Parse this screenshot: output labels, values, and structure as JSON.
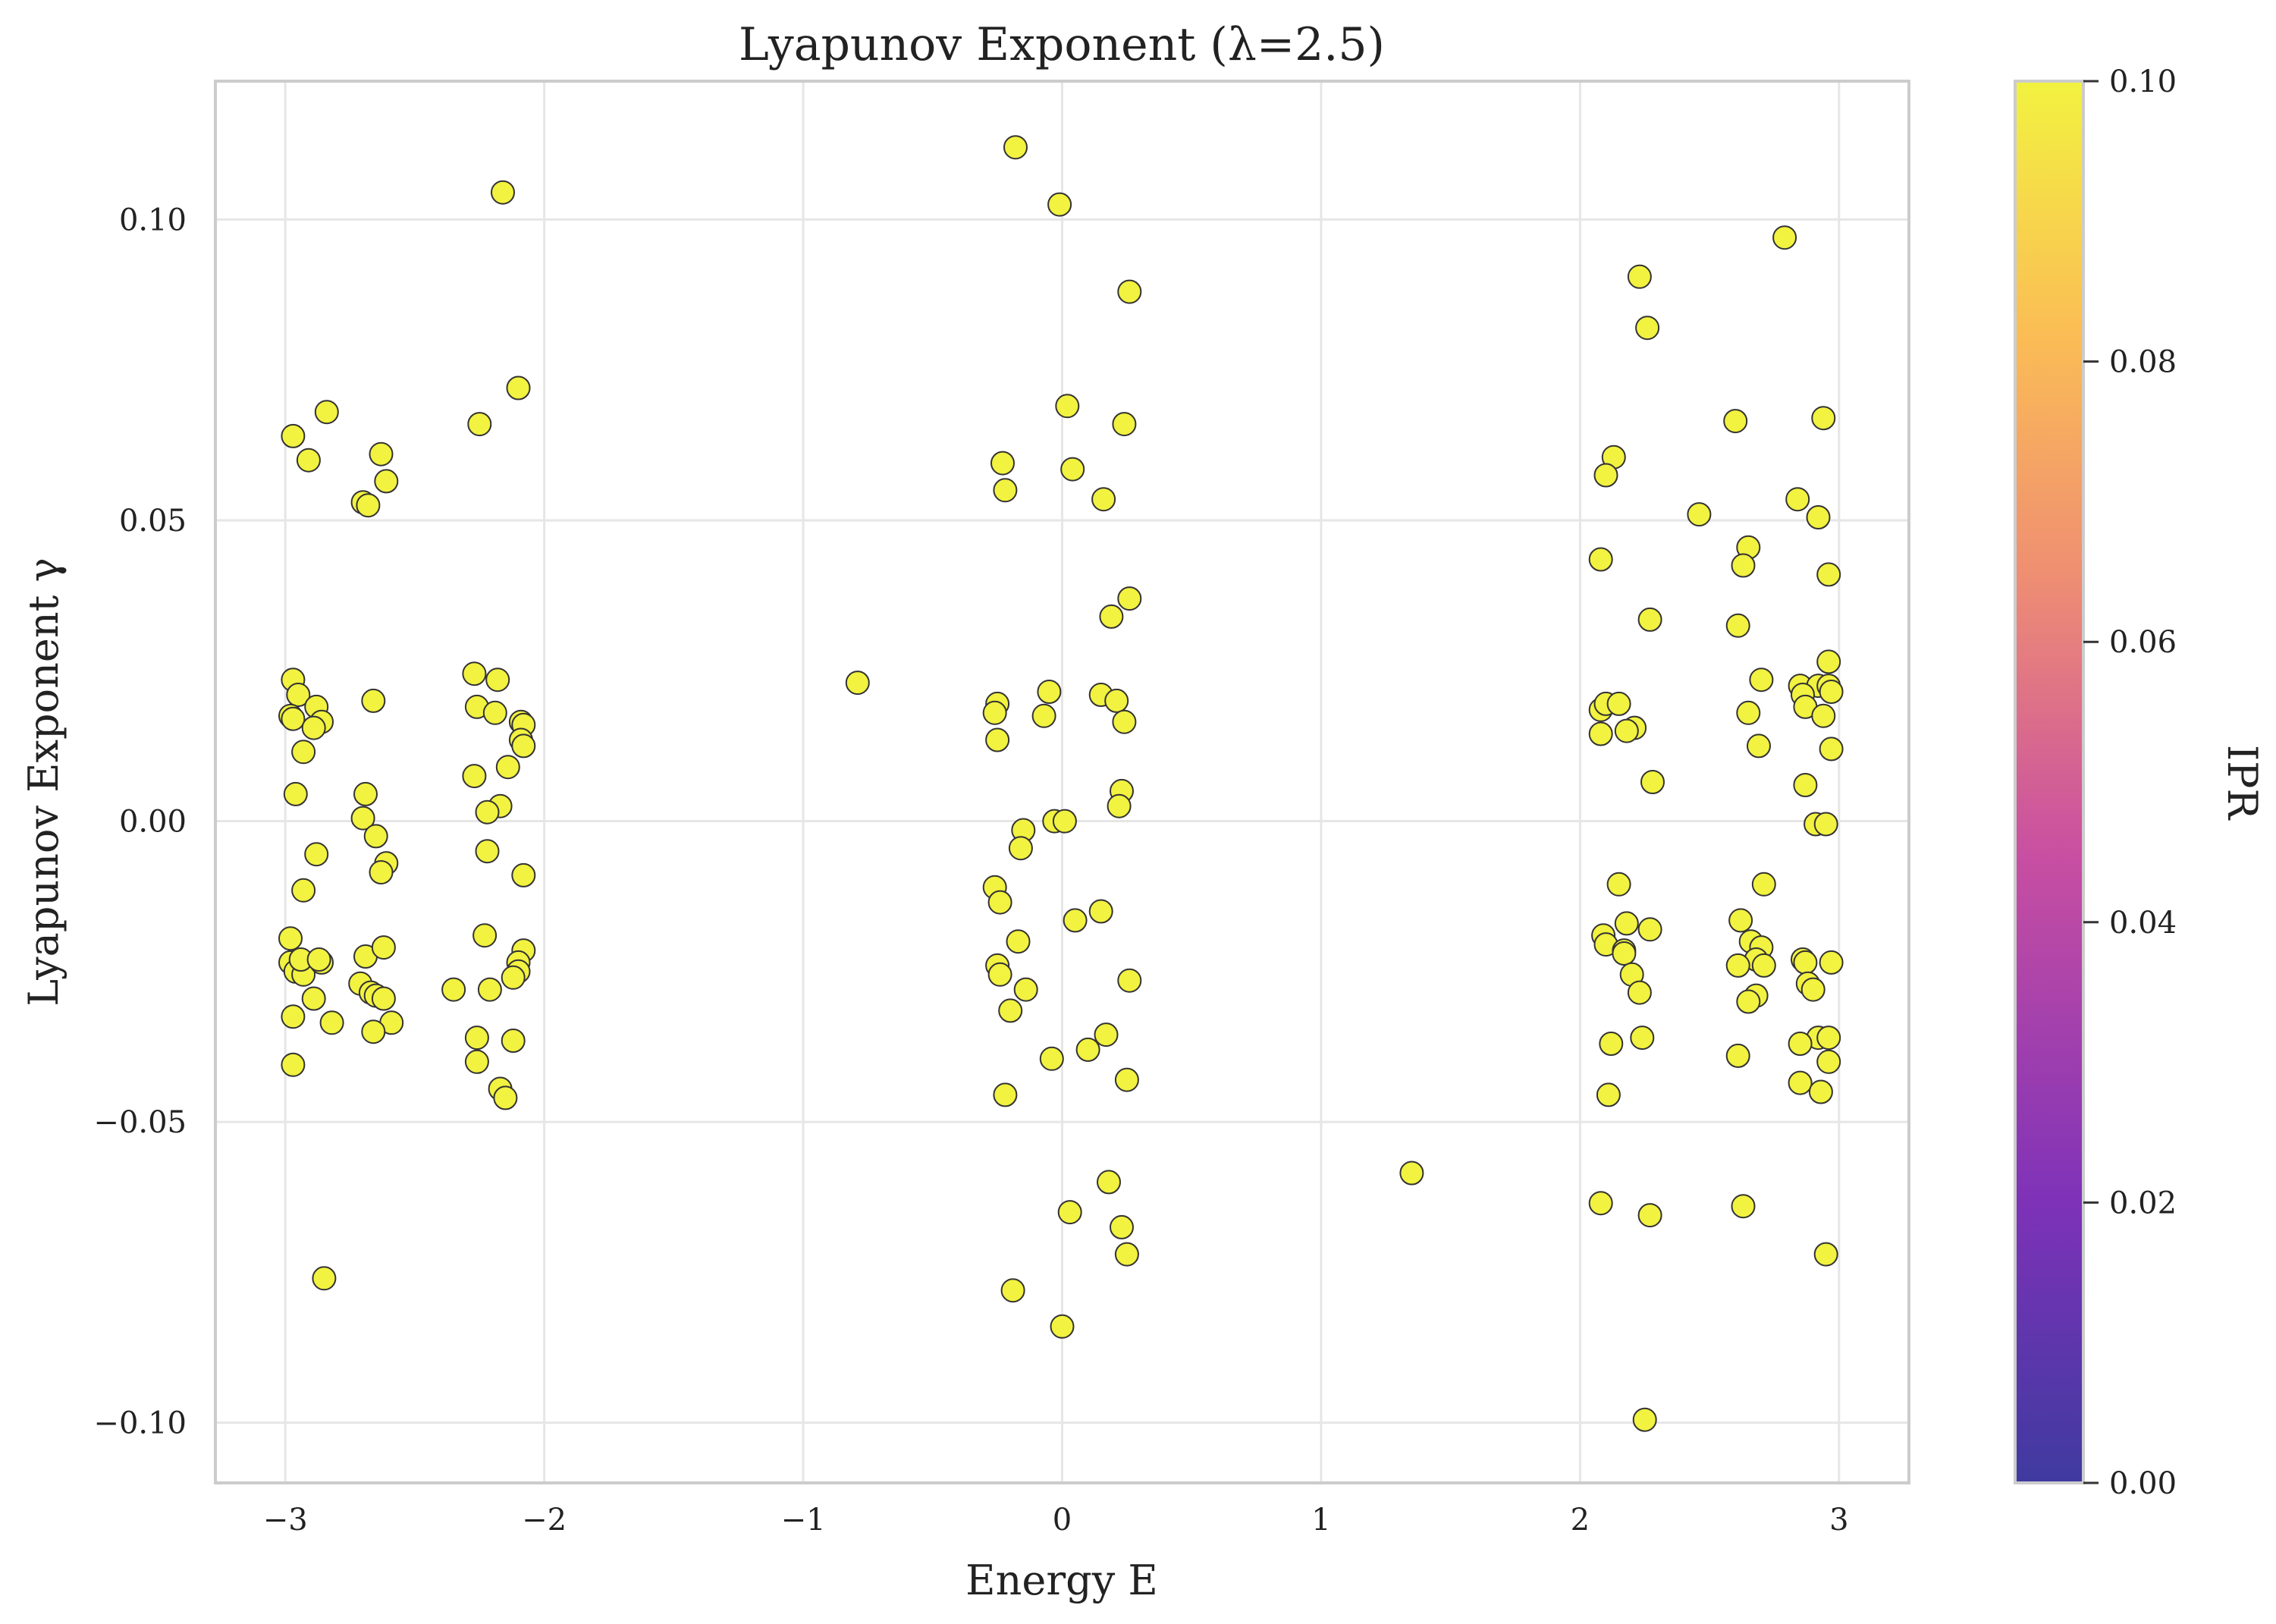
{
  "chart_data": {
    "type": "scatter",
    "title": "Lyapunov Exponent (λ=2.5)",
    "xlabel": "Energy E",
    "ylabel": "Lyapunov Exponent γ",
    "xlim": [
      -3.27,
      3.27
    ],
    "ylim": [
      -0.11,
      0.123
    ],
    "x_ticks": [
      -3,
      -2,
      -1,
      0,
      1,
      2,
      3
    ],
    "x_tick_labels": [
      "−3",
      "−2",
      "−1",
      "0",
      "1",
      "2",
      "3"
    ],
    "y_ticks": [
      -0.1,
      -0.05,
      0.0,
      0.05,
      0.1
    ],
    "y_tick_labels": [
      "−0.10",
      "−0.05",
      "0.00",
      "0.05",
      "0.10"
    ],
    "grid": true,
    "marker_color": "#f2f240",
    "marker_edge_color": "#333333",
    "colorbar": {
      "label": "IPR",
      "range": [
        0.0,
        0.1
      ],
      "ticks": [
        0.0,
        0.02,
        0.04,
        0.06,
        0.08,
        0.1
      ],
      "tick_labels": [
        "0.00",
        "0.02",
        "0.04",
        "0.06",
        "0.08",
        "0.10"
      ],
      "colormap": [
        "#3f3aa0",
        "#7e32b8",
        "#c94fa1",
        "#ef8f72",
        "#fbbd55",
        "#f2f240"
      ]
    },
    "points": [
      [
        -2.97,
        0.064
      ],
      [
        -2.91,
        0.06
      ],
      [
        -2.84,
        0.068
      ],
      [
        -2.7,
        0.053
      ],
      [
        -2.68,
        0.0525
      ],
      [
        -2.63,
        0.061
      ],
      [
        -2.61,
        0.0565
      ],
      [
        -2.97,
        0.0235
      ],
      [
        -2.95,
        0.021
      ],
      [
        -2.98,
        0.0175
      ],
      [
        -2.97,
        0.017
      ],
      [
        -2.88,
        0.019
      ],
      [
        -2.86,
        0.0165
      ],
      [
        -2.89,
        0.0155
      ],
      [
        -2.93,
        0.0115
      ],
      [
        -2.96,
        0.0045
      ],
      [
        -2.66,
        0.02
      ],
      [
        -2.69,
        0.0045
      ],
      [
        -2.7,
        0.0005
      ],
      [
        -2.65,
        -0.0025
      ],
      [
        -2.61,
        -0.007
      ],
      [
        -2.63,
        -0.0085
      ],
      [
        -2.88,
        -0.0055
      ],
      [
        -2.93,
        -0.0115
      ],
      [
        -2.98,
        -0.0195
      ],
      [
        -2.98,
        -0.0235
      ],
      [
        -2.96,
        -0.025
      ],
      [
        -2.93,
        -0.0255
      ],
      [
        -2.94,
        -0.023
      ],
      [
        -2.86,
        -0.0235
      ],
      [
        -2.87,
        -0.023
      ],
      [
        -2.89,
        -0.0295
      ],
      [
        -2.97,
        -0.0325
      ],
      [
        -2.82,
        -0.0335
      ],
      [
        -2.97,
        -0.0405
      ],
      [
        -2.85,
        -0.076
      ],
      [
        -2.69,
        -0.0225
      ],
      [
        -2.71,
        -0.027
      ],
      [
        -2.67,
        -0.0285
      ],
      [
        -2.65,
        -0.029
      ],
      [
        -2.62,
        -0.0295
      ],
      [
        -2.62,
        -0.021
      ],
      [
        -2.59,
        -0.0335
      ],
      [
        -2.66,
        -0.035
      ],
      [
        -2.16,
        0.1045
      ],
      [
        -2.1,
        0.072
      ],
      [
        -2.25,
        0.066
      ],
      [
        -2.27,
        0.0245
      ],
      [
        -2.18,
        0.0235
      ],
      [
        -2.26,
        0.019
      ],
      [
        -2.19,
        0.018
      ],
      [
        -2.09,
        0.0165
      ],
      [
        -2.08,
        0.016
      ],
      [
        -2.09,
        0.0135
      ],
      [
        -2.08,
        0.0125
      ],
      [
        -2.14,
        0.009
      ],
      [
        -2.27,
        0.0075
      ],
      [
        -2.17,
        0.0025
      ],
      [
        -2.22,
        0.0015
      ],
      [
        -2.22,
        -0.005
      ],
      [
        -2.08,
        -0.009
      ],
      [
        -2.23,
        -0.019
      ],
      [
        -2.08,
        -0.0215
      ],
      [
        -2.1,
        -0.0235
      ],
      [
        -2.1,
        -0.025
      ],
      [
        -2.12,
        -0.026
      ],
      [
        -2.21,
        -0.028
      ],
      [
        -2.35,
        -0.028
      ],
      [
        -2.26,
        -0.036
      ],
      [
        -2.12,
        -0.0365
      ],
      [
        -2.26,
        -0.04
      ],
      [
        -2.17,
        -0.0445
      ],
      [
        -2.15,
        -0.046
      ],
      [
        -0.79,
        0.023
      ],
      [
        -0.18,
        0.112
      ],
      [
        -0.01,
        0.1025
      ],
      [
        0.26,
        0.088
      ],
      [
        0.02,
        0.069
      ],
      [
        0.24,
        0.066
      ],
      [
        -0.23,
        0.0595
      ],
      [
        0.04,
        0.0585
      ],
      [
        -0.22,
        0.055
      ],
      [
        0.16,
        0.0535
      ],
      [
        0.26,
        0.037
      ],
      [
        0.19,
        0.034
      ],
      [
        -0.25,
        0.0195
      ],
      [
        -0.26,
        0.018
      ],
      [
        -0.05,
        0.0215
      ],
      [
        -0.07,
        0.0175
      ],
      [
        0.15,
        0.021
      ],
      [
        0.21,
        0.02
      ],
      [
        0.24,
        0.0165
      ],
      [
        -0.25,
        0.0135
      ],
      [
        0.23,
        0.005
      ],
      [
        0.22,
        0.0025
      ],
      [
        -0.03,
        0.0
      ],
      [
        0.01,
        -0.0
      ],
      [
        -0.15,
        -0.0015
      ],
      [
        -0.16,
        -0.0045
      ],
      [
        -0.26,
        -0.011
      ],
      [
        -0.24,
        -0.0135
      ],
      [
        0.15,
        -0.015
      ],
      [
        0.05,
        -0.0165
      ],
      [
        -0.17,
        -0.02
      ],
      [
        -0.25,
        -0.024
      ],
      [
        -0.24,
        -0.0255
      ],
      [
        0.26,
        -0.0265
      ],
      [
        -0.14,
        -0.028
      ],
      [
        -0.2,
        -0.0315
      ],
      [
        0.17,
        -0.0355
      ],
      [
        0.1,
        -0.038
      ],
      [
        -0.04,
        -0.0395
      ],
      [
        0.25,
        -0.043
      ],
      [
        -0.22,
        -0.0455
      ],
      [
        0.18,
        -0.06
      ],
      [
        0.03,
        -0.065
      ],
      [
        0.23,
        -0.0675
      ],
      [
        0.25,
        -0.072
      ],
      [
        -0.19,
        -0.078
      ],
      [
        0.0,
        -0.084
      ],
      [
        1.35,
        -0.0585
      ],
      [
        2.23,
        0.0905
      ],
      [
        2.79,
        0.097
      ],
      [
        2.26,
        0.082
      ],
      [
        2.94,
        0.067
      ],
      [
        2.6,
        0.0665
      ],
      [
        2.13,
        0.0605
      ],
      [
        2.1,
        0.0575
      ],
      [
        2.84,
        0.0535
      ],
      [
        2.46,
        0.051
      ],
      [
        2.92,
        0.0505
      ],
      [
        2.08,
        0.0435
      ],
      [
        2.65,
        0.0455
      ],
      [
        2.63,
        0.0425
      ],
      [
        2.96,
        0.041
      ],
      [
        2.27,
        0.0335
      ],
      [
        2.61,
        0.0325
      ],
      [
        2.96,
        0.0265
      ],
      [
        2.7,
        0.0235
      ],
      [
        2.85,
        0.0225
      ],
      [
        2.92,
        0.0225
      ],
      [
        2.96,
        0.0225
      ],
      [
        2.97,
        0.0215
      ],
      [
        2.86,
        0.021
      ],
      [
        2.08,
        0.0185
      ],
      [
        2.1,
        0.0195
      ],
      [
        2.15,
        0.0195
      ],
      [
        2.21,
        0.0155
      ],
      [
        2.18,
        0.015
      ],
      [
        2.08,
        0.0145
      ],
      [
        2.65,
        0.018
      ],
      [
        2.87,
        0.019
      ],
      [
        2.94,
        0.0175
      ],
      [
        2.69,
        0.0125
      ],
      [
        2.97,
        0.012
      ],
      [
        2.28,
        0.0065
      ],
      [
        2.87,
        0.006
      ],
      [
        2.91,
        -0.0005
      ],
      [
        2.95,
        -0.0005
      ],
      [
        2.15,
        -0.0105
      ],
      [
        2.71,
        -0.0105
      ],
      [
        2.62,
        -0.0165
      ],
      [
        2.18,
        -0.017
      ],
      [
        2.27,
        -0.018
      ],
      [
        2.09,
        -0.019
      ],
      [
        2.1,
        -0.0205
      ],
      [
        2.17,
        -0.0215
      ],
      [
        2.17,
        -0.022
      ],
      [
        2.66,
        -0.02
      ],
      [
        2.7,
        -0.021
      ],
      [
        2.68,
        -0.023
      ],
      [
        2.86,
        -0.023
      ],
      [
        2.87,
        -0.0235
      ],
      [
        2.97,
        -0.0235
      ],
      [
        2.71,
        -0.024
      ],
      [
        2.61,
        -0.024
      ],
      [
        2.2,
        -0.0255
      ],
      [
        2.88,
        -0.027
      ],
      [
        2.9,
        -0.028
      ],
      [
        2.23,
        -0.0285
      ],
      [
        2.68,
        -0.029
      ],
      [
        2.65,
        -0.03
      ],
      [
        2.24,
        -0.036
      ],
      [
        2.92,
        -0.036
      ],
      [
        2.96,
        -0.036
      ],
      [
        2.12,
        -0.037
      ],
      [
        2.85,
        -0.037
      ],
      [
        2.61,
        -0.039
      ],
      [
        2.96,
        -0.04
      ],
      [
        2.85,
        -0.0435
      ],
      [
        2.11,
        -0.0455
      ],
      [
        2.93,
        -0.045
      ],
      [
        2.08,
        -0.0635
      ],
      [
        2.63,
        -0.064
      ],
      [
        2.27,
        -0.0655
      ],
      [
        2.95,
        -0.072
      ],
      [
        2.25,
        -0.0995
      ]
    ]
  }
}
